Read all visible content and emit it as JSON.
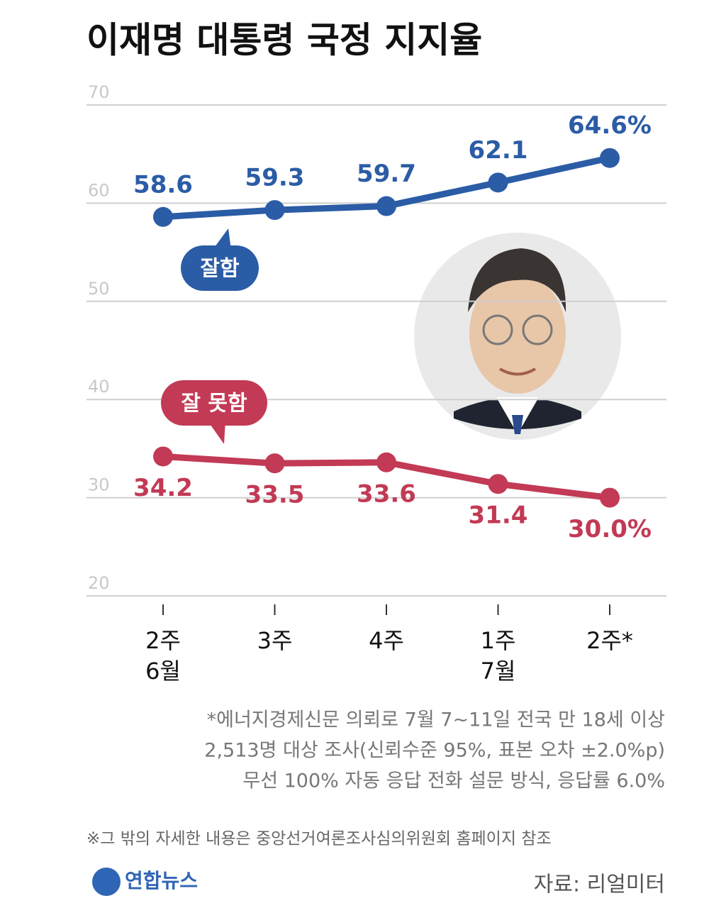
{
  "chart_data": {
    "type": "line",
    "title": "이재명 대통령 국정 지지율",
    "categories": [
      "2주",
      "3주",
      "4주",
      "1주",
      "2주*"
    ],
    "month_labels": [
      "6월",
      null,
      null,
      "7월",
      null
    ],
    "ylim": [
      20,
      70
    ],
    "yticks": [
      20,
      30,
      40,
      50,
      60,
      70
    ],
    "grid": true,
    "series": [
      {
        "name": "잘함",
        "color": "#2b5ca6",
        "values": [
          58.6,
          59.3,
          59.7,
          62.1,
          64.6
        ],
        "value_labels": [
          "58.6",
          "59.3",
          "59.7",
          "62.1",
          "64.6%"
        ]
      },
      {
        "name": "잘 못함",
        "color": "#c23a55",
        "values": [
          34.2,
          33.5,
          33.6,
          31.4,
          30.0
        ],
        "value_labels": [
          "34.2",
          "33.5",
          "33.6",
          "31.4",
          "30.0%"
        ]
      }
    ],
    "notes": [
      "*에너지경제신문 의뢰로 7월 7~11일 전국 만 18세 이상",
      "2,513명 대상 조사(신뢰수준 95%, 표본 오차 ±2.0%p)",
      "무선 100% 자동 응답 전화 설문 방식, 응답률 6.0%"
    ],
    "footnote": "※그 밖의 자세한 내용은 중앙선거여론조사심의위원회 홈페이지 참조",
    "logo": "연합뉴스",
    "source": "자료: 리얼미터"
  }
}
